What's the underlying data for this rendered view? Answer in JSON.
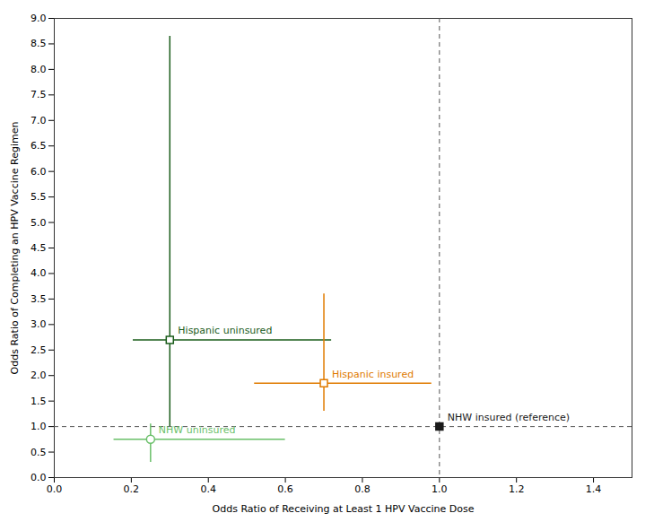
{
  "chart_data": {
    "type": "scatter",
    "xlabel": "Odds Ratio of Receiving at Least 1 HPV Vaccine Dose",
    "ylabel": "Odds Ratio of Completing an HPV Vaccine Regimen",
    "xlim": [
      0.0,
      1.5
    ],
    "ylim": [
      0.0,
      9.0
    ],
    "xticks": [
      {
        "value": 0.0,
        "label": "0.0"
      },
      0.2,
      0.4,
      0.6,
      0.8,
      {
        "value": 1.0,
        "label": "1.0"
      },
      1.2,
      1.4
    ],
    "yticks": [
      {
        "value": 0.0,
        "label": "0.0"
      },
      0.5,
      {
        "value": 1.0,
        "label": "1.0"
      },
      1.5,
      {
        "value": 2.0,
        "label": "2.0"
      },
      2.5,
      {
        "value": 3.0,
        "label": "3.0"
      },
      3.5,
      {
        "value": 4.0,
        "label": "4.0"
      },
      4.5,
      {
        "value": 5.0,
        "label": "5.0"
      },
      5.5,
      {
        "value": 6.0,
        "label": "6.0"
      },
      6.5,
      {
        "value": 7.0,
        "label": "7.0"
      },
      7.5,
      {
        "value": 8.0,
        "label": "8.0"
      },
      8.5,
      {
        "value": 9.0,
        "label": "9.0"
      }
    ],
    "reference_lines": {
      "x": 1.0,
      "y": 1.0
    },
    "series": [
      {
        "name": "NHW insured (reference)",
        "color": "#1a1a1a",
        "marker": "filled_square",
        "x": [
          1.0
        ],
        "values": [
          1.0
        ],
        "x_lo": [
          null
        ],
        "x_hi": [
          null
        ],
        "y_lo": [
          null
        ],
        "y_hi": [
          null
        ]
      },
      {
        "name": "Hispanic insured",
        "color": "#e07b00",
        "marker": "open_square",
        "x": [
          0.7
        ],
        "values": [
          1.85
        ],
        "x_lo": [
          0.52
        ],
        "x_hi": [
          0.98
        ],
        "y_lo": [
          1.3
        ],
        "y_hi": [
          3.6
        ]
      },
      {
        "name": "Hispanic uninsured",
        "color": "#1a5c1a",
        "marker": "open_square",
        "x": [
          0.3
        ],
        "values": [
          2.7
        ],
        "x_lo": [
          0.205
        ],
        "x_hi": [
          0.72
        ],
        "y_lo": [
          1.0
        ],
        "y_hi": [
          8.65
        ]
      },
      {
        "name": "NHW uninsured",
        "color": "#6abf69",
        "marker": "open_circle",
        "x": [
          0.25
        ],
        "values": [
          0.75
        ],
        "x_lo": [
          0.155
        ],
        "x_hi": [
          0.6
        ],
        "y_lo": [
          0.3
        ],
        "y_hi": [
          1.05
        ]
      }
    ]
  }
}
